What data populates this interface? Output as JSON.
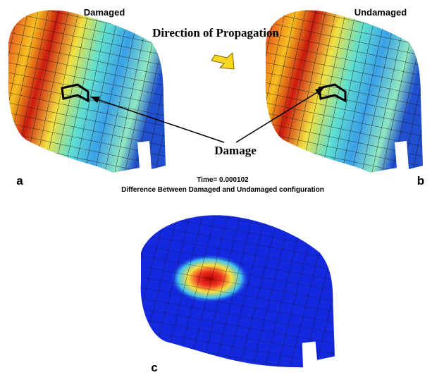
{
  "labels": {
    "damaged": "Damaged",
    "undamaged": "Undamaged",
    "direction": "Direction of Propagation",
    "damage": "Damage",
    "panel_a": "a",
    "panel_b": "b",
    "panel_c": "c"
  },
  "caption": {
    "time": "Time= 0.000102",
    "difference": "Difference Between Damaged and Undamaged configuration"
  }
}
